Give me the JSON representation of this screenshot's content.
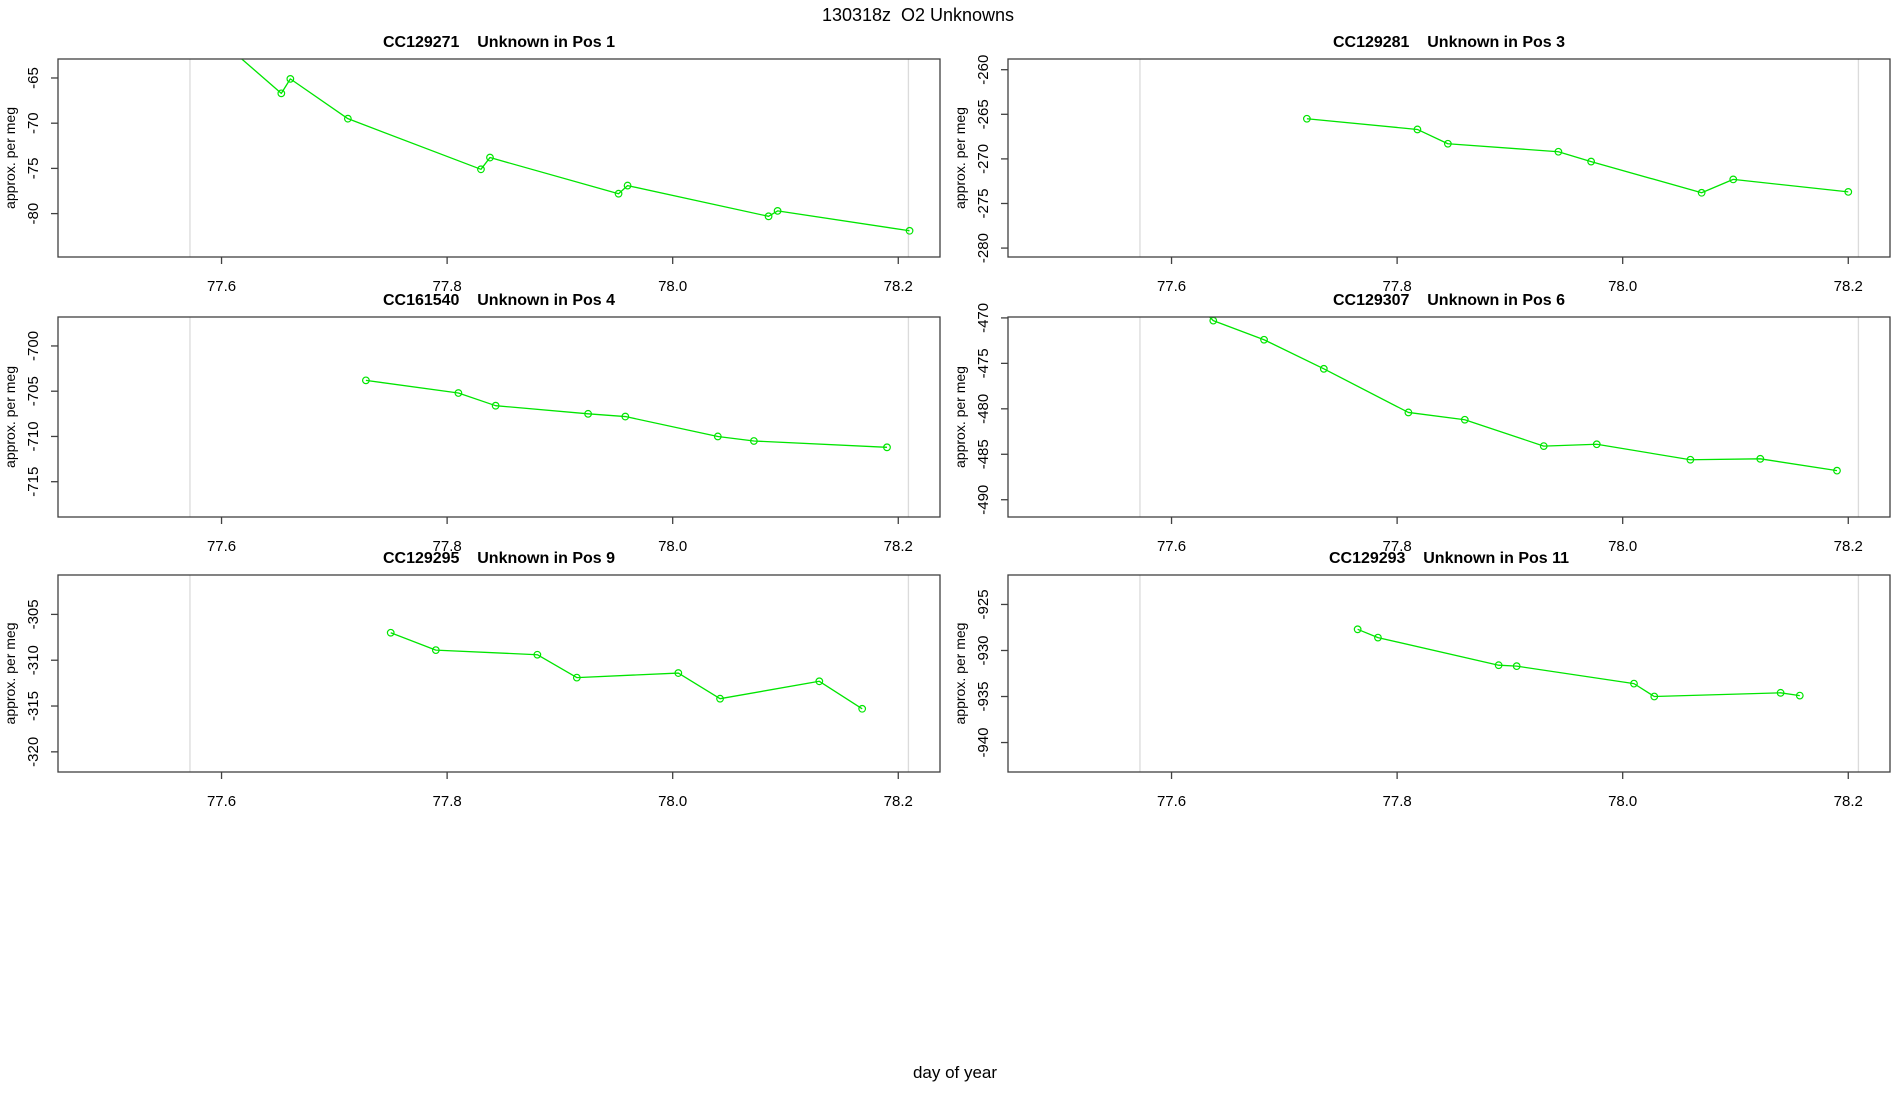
{
  "header": {
    "title": "130318z  O2 Unknowns"
  },
  "footer": {
    "xlabel": "day of year"
  },
  "style": {
    "line_color": "#00E500",
    "ref_line_color": "#DBDBDB",
    "frame_color": "#404040",
    "text_color": "#000000",
    "background": "#FFFFFF"
  },
  "chart_data": [
    {
      "type": "line",
      "title": "CC129271    Unknown in Pos 1",
      "ylabel": "approx. per meg",
      "xlim": [
        77.455,
        78.237
      ],
      "ylim": [
        -84.8,
        -62.9
      ],
      "x_tick_values": [
        77.6,
        77.8,
        78.0,
        78.2
      ],
      "x_tick_labels": [
        "77.6",
        "77.8",
        "78.0",
        "78.2"
      ],
      "y_tick_values": [
        -65,
        -70,
        -75,
        -80
      ],
      "y_tick_labels": [
        "-65",
        "-70",
        "-75",
        "-80"
      ],
      "ref_lines_x": [
        77.572,
        78.209
      ],
      "entry": [
        77.605,
        -61.5
      ],
      "points": [
        [
          77.653,
          -66.7
        ],
        [
          77.661,
          -65.1
        ],
        [
          77.712,
          -69.5
        ],
        [
          77.83,
          -75.1
        ],
        [
          77.838,
          -73.8
        ],
        [
          77.952,
          -77.8
        ],
        [
          77.96,
          -76.9
        ],
        [
          78.085,
          -80.3
        ],
        [
          78.093,
          -79.7
        ],
        [
          78.21,
          -81.9
        ]
      ]
    },
    {
      "type": "line",
      "title": "CC129281    Unknown in Pos 3",
      "ylabel": "approx. per meg",
      "xlim": [
        77.455,
        78.237
      ],
      "ylim": [
        -281.0,
        -258.8
      ],
      "x_tick_values": [
        77.6,
        77.8,
        78.0,
        78.2
      ],
      "x_tick_labels": [
        "77.6",
        "77.8",
        "78.0",
        "78.2"
      ],
      "y_tick_values": [
        -260,
        -265,
        -270,
        -275,
        -280
      ],
      "y_tick_labels": [
        "-260",
        "-265",
        "-270",
        "-275",
        "-280"
      ],
      "ref_lines_x": [
        77.572,
        78.209
      ],
      "entry": null,
      "points": [
        [
          77.72,
          -265.5
        ],
        [
          77.818,
          -266.7
        ],
        [
          77.845,
          -268.3
        ],
        [
          77.943,
          -269.2
        ],
        [
          77.972,
          -270.3
        ],
        [
          78.07,
          -273.8
        ],
        [
          78.098,
          -272.3
        ],
        [
          78.2,
          -273.7
        ]
      ]
    },
    {
      "type": "line",
      "title": "CC161540    Unknown in Pos 4",
      "ylabel": "approx. per meg",
      "xlim": [
        77.455,
        78.237
      ],
      "ylim": [
        -718.9,
        -696.8
      ],
      "x_tick_values": [
        77.6,
        77.8,
        78.0,
        78.2
      ],
      "x_tick_labels": [
        "77.6",
        "77.8",
        "78.0",
        "78.2"
      ],
      "y_tick_values": [
        -700,
        -705,
        -710,
        -715
      ],
      "y_tick_labels": [
        "-700",
        "-705",
        "-710",
        "-715"
      ],
      "ref_lines_x": [
        77.572,
        78.209
      ],
      "entry": null,
      "points": [
        [
          77.728,
          -703.8
        ],
        [
          77.81,
          -705.2
        ],
        [
          77.843,
          -706.6
        ],
        [
          77.925,
          -707.5
        ],
        [
          77.958,
          -707.8
        ],
        [
          78.04,
          -710.0
        ],
        [
          78.072,
          -710.5
        ],
        [
          78.19,
          -711.2
        ]
      ]
    },
    {
      "type": "line",
      "title": "CC129307    Unknown in Pos 6",
      "ylabel": "approx. per meg",
      "xlim": [
        77.455,
        78.237
      ],
      "ylim": [
        -491.9,
        -469.9
      ],
      "x_tick_values": [
        77.6,
        77.8,
        78.0,
        78.2
      ],
      "x_tick_labels": [
        "77.6",
        "77.8",
        "78.0",
        "78.2"
      ],
      "y_tick_values": [
        -470,
        -475,
        -480,
        -485,
        -490
      ],
      "y_tick_labels": [
        "-470",
        "-475",
        "-480",
        "-485",
        "-490"
      ],
      "ref_lines_x": [
        77.572,
        78.209
      ],
      "entry": [
        77.61,
        -467.0
      ],
      "points": [
        [
          77.637,
          -470.3
        ],
        [
          77.682,
          -472.4
        ],
        [
          77.735,
          -475.6
        ],
        [
          77.81,
          -480.4
        ],
        [
          77.86,
          -481.2
        ],
        [
          77.93,
          -484.1
        ],
        [
          77.977,
          -483.9
        ],
        [
          78.06,
          -485.6
        ],
        [
          78.122,
          -485.5
        ],
        [
          78.19,
          -486.8
        ]
      ]
    },
    {
      "type": "line",
      "title": "CC129295    Unknown in Pos 9",
      "ylabel": "approx. per meg",
      "xlim": [
        77.455,
        78.237
      ],
      "ylim": [
        -322.2,
        -300.7
      ],
      "x_tick_values": [
        77.6,
        77.8,
        78.0,
        78.2
      ],
      "x_tick_labels": [
        "77.6",
        "77.8",
        "78.0",
        "78.2"
      ],
      "y_tick_values": [
        -305,
        -310,
        -315,
        -320
      ],
      "y_tick_labels": [
        "-305",
        "-310",
        "-315",
        "-320"
      ],
      "ref_lines_x": [
        77.572,
        78.209
      ],
      "entry": null,
      "points": [
        [
          77.75,
          -307.0
        ],
        [
          77.79,
          -308.9
        ],
        [
          77.88,
          -309.4
        ],
        [
          77.915,
          -311.9
        ],
        [
          78.005,
          -311.4
        ],
        [
          78.042,
          -314.2
        ],
        [
          78.13,
          -312.3
        ],
        [
          78.168,
          -315.3
        ]
      ]
    },
    {
      "type": "line",
      "title": "CC129293    Unknown in Pos 11",
      "ylabel": "approx. per meg",
      "xlim": [
        77.455,
        78.237
      ],
      "ylim": [
        -943.2,
        -921.8
      ],
      "x_tick_values": [
        77.6,
        77.8,
        78.0,
        78.2
      ],
      "x_tick_labels": [
        "77.6",
        "77.8",
        "78.0",
        "78.2"
      ],
      "y_tick_values": [
        -925,
        -930,
        -935,
        -940
      ],
      "y_tick_labels": [
        "-925",
        "-930",
        "-935",
        "-940"
      ],
      "ref_lines_x": [
        77.572,
        78.209
      ],
      "entry": null,
      "points": [
        [
          77.765,
          -927.7
        ],
        [
          77.783,
          -928.6
        ],
        [
          77.89,
          -931.6
        ],
        [
          77.906,
          -931.7
        ],
        [
          78.01,
          -933.6
        ],
        [
          78.028,
          -935.0
        ],
        [
          78.14,
          -934.6
        ],
        [
          78.157,
          -934.9
        ]
      ]
    }
  ]
}
